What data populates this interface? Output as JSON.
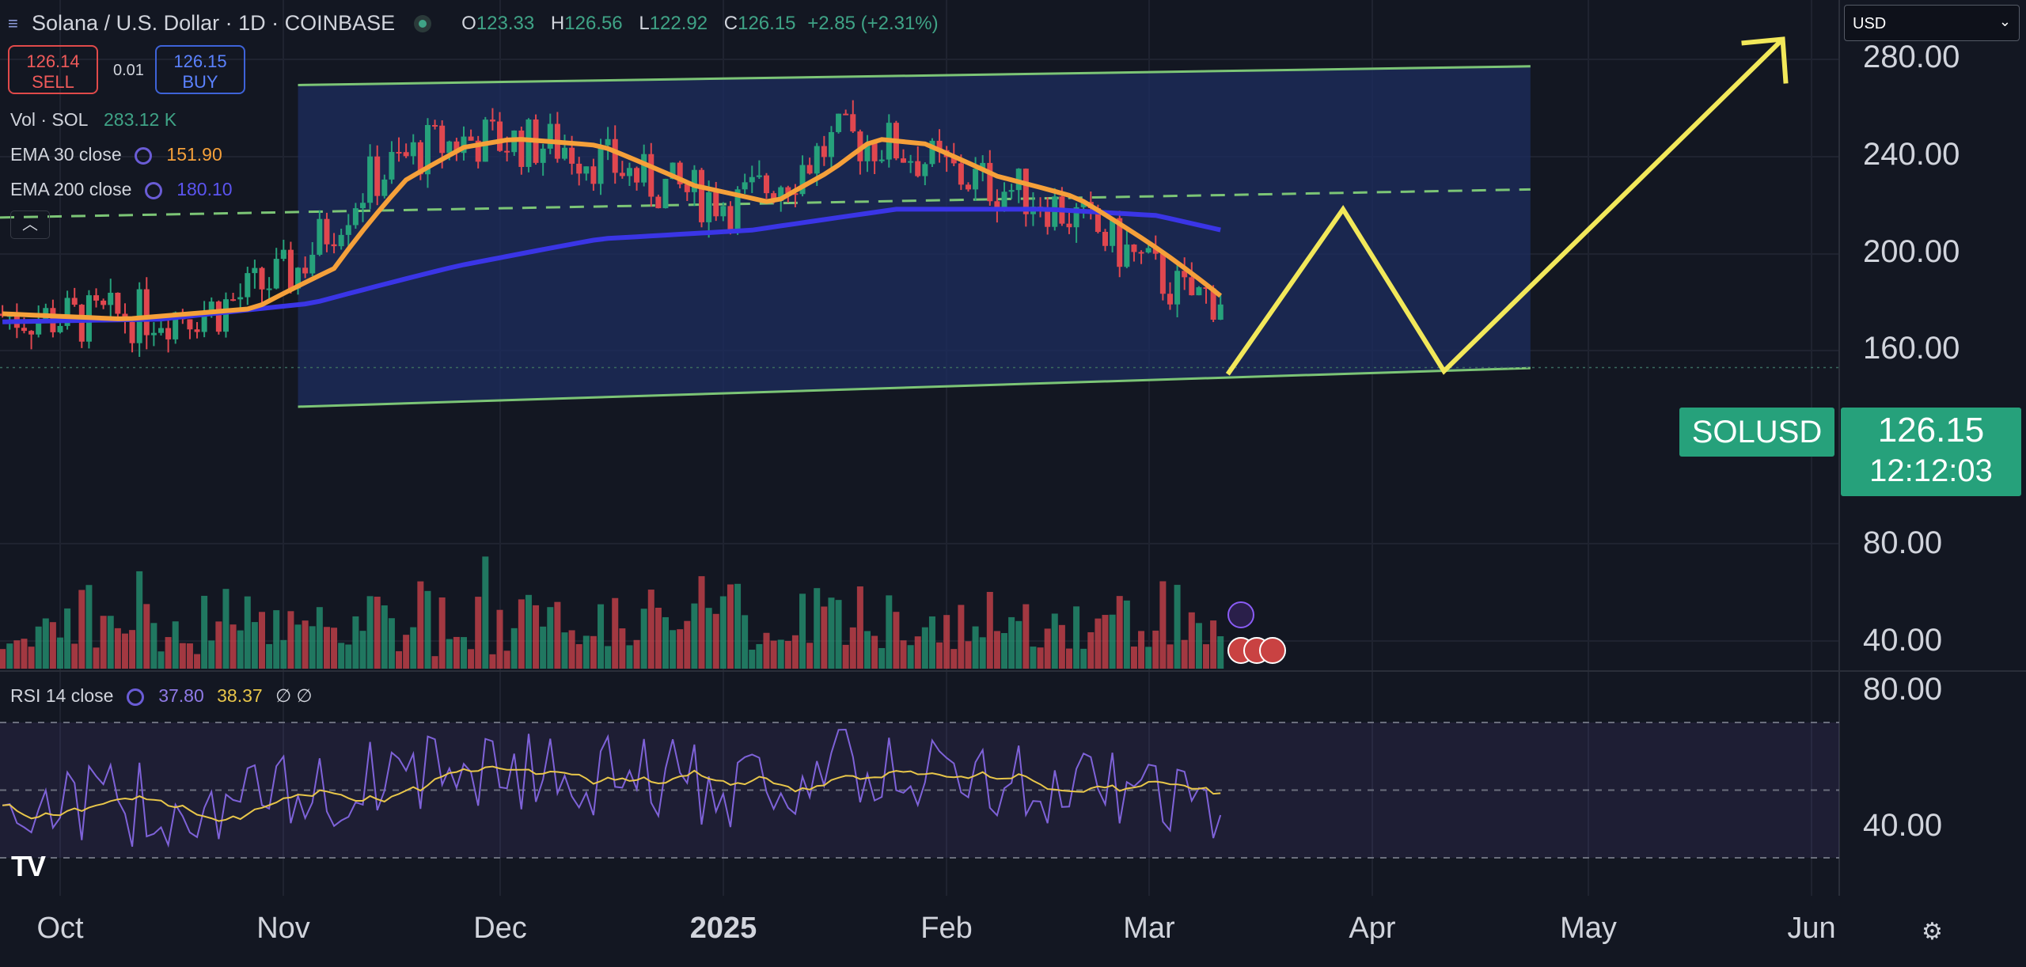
{
  "header": {
    "symbol_title": "Solana / U.S. Dollar · 1D · COINBASE",
    "ohlc": {
      "o_label": "O",
      "o": "123.33",
      "h_label": "H",
      "h": "126.56",
      "l_label": "L",
      "l": "122.92",
      "c_label": "C",
      "c": "126.15",
      "change": "+2.85 (+2.31%)"
    },
    "sell_price": "126.14",
    "sell_label": "SELL",
    "spread": "0.01",
    "buy_price": "126.15",
    "buy_label": "BUY"
  },
  "indicators": {
    "vol": {
      "label": "Vol · SOL",
      "value": "283.12 K"
    },
    "ema30": {
      "label": "EMA 30 close",
      "value": "151.90"
    },
    "ema200": {
      "label": "EMA 200 close",
      "value": "180.10"
    },
    "rsi": {
      "label": "RSI 14 close",
      "value1": "37.80",
      "value2": "38.37",
      "extra": "∅ ∅"
    }
  },
  "currency_selector": {
    "value": "USD"
  },
  "price_axis": {
    "labels": [
      "280.00",
      "240.00",
      "200.00",
      "160.00",
      "80.00",
      "40.00"
    ]
  },
  "rsi_axis": {
    "labels": [
      "80.00",
      "40.00"
    ]
  },
  "time_axis": {
    "labels": [
      "Oct",
      "Nov",
      "Dec",
      "2025",
      "Feb",
      "Mar",
      "Apr",
      "May",
      "Jun"
    ]
  },
  "last_price": {
    "symbol": "SOLUSD",
    "price": "126.15",
    "countdown": "12:12:03"
  },
  "logo": "TV",
  "colors": {
    "background": "#131722",
    "up": "#26a17b",
    "down": "#e0474f",
    "ema30": "#f5a03a",
    "ema200": "#3a35e6",
    "channel_fill": "#1e2e5f",
    "channel_line": "#7cc576",
    "projection": "#f2e85a",
    "rsi_line": "#7e62d8",
    "rsi_ma": "#e8c64a"
  },
  "chart_data": {
    "type": "candlestick",
    "title": "Solana / U.S. Dollar · 1D · COINBASE",
    "x_range": [
      "2024-09-23",
      "2025-06-08"
    ],
    "y_range": [
      10,
      300
    ],
    "ema30_close": [
      [
        "2024-09-23",
        145
      ],
      [
        "2024-10-10",
        143
      ],
      [
        "2024-10-28",
        147
      ],
      [
        "2024-11-08",
        163
      ],
      [
        "2024-11-18",
        205
      ],
      [
        "2024-11-26",
        223
      ],
      [
        "2024-12-03",
        228
      ],
      [
        "2024-12-15",
        224
      ],
      [
        "2024-12-28",
        202
      ],
      [
        "2025-01-08",
        193
      ],
      [
        "2025-01-16",
        210
      ],
      [
        "2025-01-22",
        228
      ],
      [
        "2025-01-29",
        225
      ],
      [
        "2025-02-08",
        207
      ],
      [
        "2025-02-19",
        196
      ],
      [
        "2025-03-03",
        170
      ],
      [
        "2025-03-11",
        151.9
      ]
    ],
    "ema200_close": [
      [
        "2024-09-23",
        142
      ],
      [
        "2024-10-15",
        143
      ],
      [
        "2024-11-05",
        149
      ],
      [
        "2024-11-25",
        164
      ],
      [
        "2024-12-15",
        176
      ],
      [
        "2025-01-05",
        180
      ],
      [
        "2025-01-25",
        190
      ],
      [
        "2025-02-15",
        190
      ],
      [
        "2025-03-02",
        187
      ],
      [
        "2025-03-11",
        180.1
      ]
    ],
    "channel": {
      "upper": [
        [
          "2024-11-03",
          262
        ],
        [
          "2025-04-23",
          275
        ]
      ],
      "lower": [
        [
          "2024-11-03",
          114
        ],
        [
          "2025-04-23",
          126
        ]
      ],
      "mid": [
        [
          "2024-11-03",
          188
        ],
        [
          "2025-04-23",
          200
        ]
      ]
    },
    "projection": [
      [
        "2025-03-12",
        124
      ],
      [
        "2025-03-28",
        190
      ],
      [
        "2025-04-11",
        125
      ],
      [
        "2025-05-28",
        295
      ]
    ],
    "rsi": {
      "range": [
        20,
        90
      ],
      "levels": [
        70,
        50,
        30
      ],
      "last": 37.8,
      "ma_last": 38.37
    }
  }
}
